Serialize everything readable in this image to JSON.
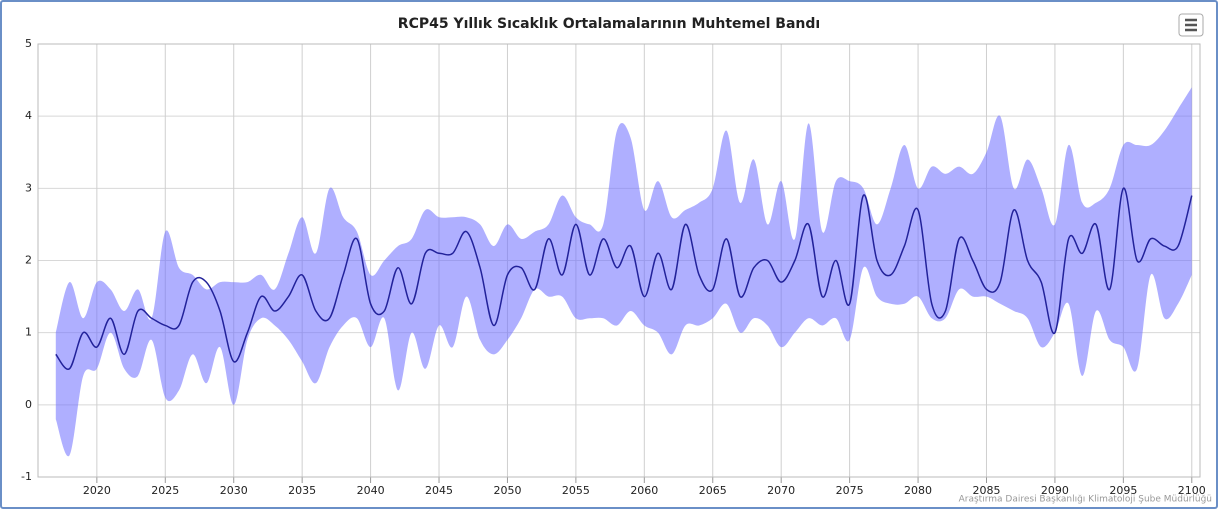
{
  "chart_data": {
    "type": "arearange-line",
    "title": "RCP45 Yıllık Sıcaklık Ortalamalarının Muhtemel Bandı",
    "credit": "Araştırma Dairesi Başkanlığı Klimatoloji Şube Müdürlüğü",
    "x": [
      2017,
      2018,
      2019,
      2020,
      2021,
      2022,
      2023,
      2024,
      2025,
      2026,
      2027,
      2028,
      2029,
      2030,
      2031,
      2032,
      2033,
      2034,
      2035,
      2036,
      2037,
      2038,
      2039,
      2040,
      2041,
      2042,
      2043,
      2044,
      2045,
      2046,
      2047,
      2048,
      2049,
      2050,
      2051,
      2052,
      2053,
      2054,
      2055,
      2056,
      2057,
      2058,
      2059,
      2060,
      2061,
      2062,
      2063,
      2064,
      2065,
      2066,
      2067,
      2068,
      2069,
      2070,
      2071,
      2072,
      2073,
      2074,
      2075,
      2076,
      2077,
      2078,
      2079,
      2080,
      2081,
      2082,
      2083,
      2084,
      2085,
      2086,
      2087,
      2088,
      2089,
      2090,
      2091,
      2092,
      2093,
      2094,
      2095,
      2096,
      2097,
      2098,
      2099,
      2100
    ],
    "range": {
      "color": "rgba(110,110,255,0.55)",
      "low": [
        -0.2,
        -0.7,
        0.4,
        0.5,
        1.0,
        0.5,
        0.4,
        0.9,
        0.1,
        0.2,
        0.7,
        0.3,
        0.8,
        0.0,
        0.9,
        1.2,
        1.1,
        0.9,
        0.6,
        0.3,
        0.8,
        1.1,
        1.2,
        0.8,
        1.2,
        0.2,
        1.0,
        0.5,
        1.1,
        0.8,
        1.5,
        0.9,
        0.7,
        0.9,
        1.2,
        1.6,
        1.5,
        1.5,
        1.2,
        1.2,
        1.2,
        1.1,
        1.3,
        1.1,
        1.0,
        0.7,
        1.1,
        1.1,
        1.2,
        1.4,
        1.0,
        1.2,
        1.1,
        0.8,
        1.0,
        1.2,
        1.1,
        1.2,
        0.9,
        1.9,
        1.5,
        1.4,
        1.4,
        1.5,
        1.2,
        1.2,
        1.6,
        1.5,
        1.5,
        1.4,
        1.3,
        1.2,
        0.8,
        1.0,
        1.4,
        0.4,
        1.3,
        0.9,
        0.8,
        0.5,
        1.8,
        1.2,
        1.4,
        1.8
      ],
      "high": [
        1.0,
        1.7,
        1.2,
        1.7,
        1.6,
        1.3,
        1.6,
        1.2,
        2.4,
        1.9,
        1.8,
        1.6,
        1.7,
        1.7,
        1.7,
        1.8,
        1.6,
        2.1,
        2.6,
        2.1,
        3.0,
        2.6,
        2.4,
        1.8,
        2.0,
        2.2,
        2.3,
        2.7,
        2.6,
        2.6,
        2.6,
        2.5,
        2.2,
        2.5,
        2.3,
        2.4,
        2.5,
        2.9,
        2.6,
        2.5,
        2.5,
        3.8,
        3.7,
        2.7,
        3.1,
        2.6,
        2.7,
        2.8,
        3.0,
        3.8,
        2.8,
        3.4,
        2.5,
        3.1,
        2.3,
        3.9,
        2.4,
        3.1,
        3.1,
        3.0,
        2.5,
        3.0,
        3.6,
        3.0,
        3.3,
        3.2,
        3.3,
        3.2,
        3.5,
        4.0,
        3.0,
        3.4,
        3.0,
        2.5,
        3.6,
        2.8,
        2.8,
        3.0,
        3.6,
        3.6,
        3.6,
        3.8,
        4.1,
        4.4
      ]
    },
    "line": {
      "color": "#22229a",
      "values": [
        0.7,
        0.5,
        1.0,
        0.8,
        1.2,
        0.7,
        1.3,
        1.2,
        1.1,
        1.1,
        1.7,
        1.7,
        1.3,
        0.6,
        1.0,
        1.5,
        1.3,
        1.5,
        1.8,
        1.3,
        1.2,
        1.8,
        2.3,
        1.4,
        1.3,
        1.9,
        1.4,
        2.1,
        2.1,
        2.1,
        2.4,
        1.9,
        1.1,
        1.8,
        1.9,
        1.6,
        2.3,
        1.8,
        2.5,
        1.8,
        2.3,
        1.9,
        2.2,
        1.5,
        2.1,
        1.6,
        2.5,
        1.8,
        1.6,
        2.3,
        1.5,
        1.9,
        2.0,
        1.7,
        2.0,
        2.5,
        1.5,
        2.0,
        1.4,
        2.9,
        2.0,
        1.8,
        2.2,
        2.7,
        1.4,
        1.3,
        2.3,
        2.0,
        1.6,
        1.7,
        2.7,
        2.0,
        1.7,
        1.0,
        2.3,
        2.1,
        2.5,
        1.6,
        3.0,
        2.0,
        2.3,
        2.2,
        2.2,
        2.9
      ]
    },
    "xlim": [
      2015.7,
      2100.6
    ],
    "xticks": [
      2020,
      2025,
      2030,
      2035,
      2040,
      2045,
      2050,
      2055,
      2060,
      2065,
      2070,
      2075,
      2080,
      2085,
      2090,
      2095,
      2100
    ],
    "ylim": [
      -1,
      5
    ],
    "yticks": [
      -1,
      0,
      1,
      2,
      3,
      4,
      5
    ],
    "grid": true
  }
}
